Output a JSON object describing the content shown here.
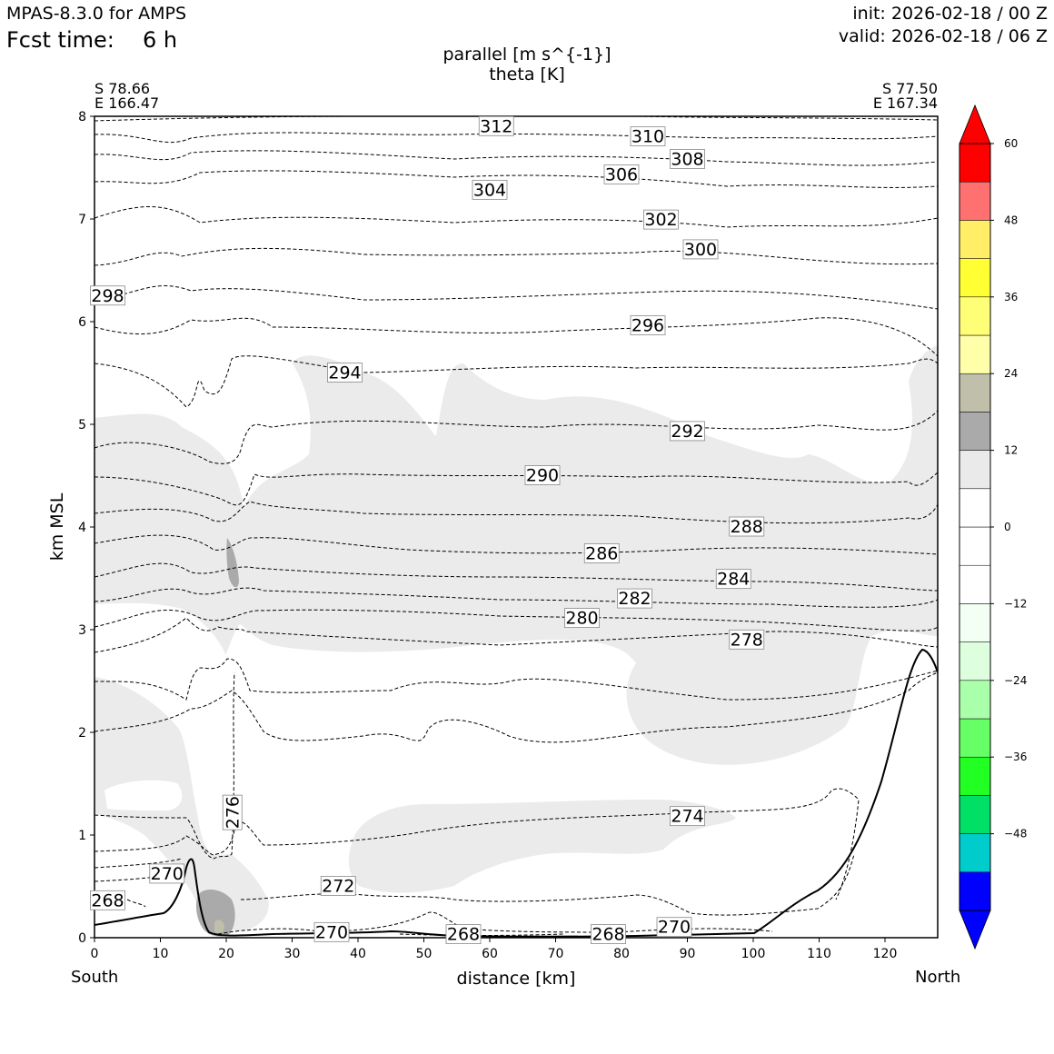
{
  "header": {
    "model": "MPAS-8.3.0 for AMPS",
    "fcst_label": "Fcst time:",
    "fcst_value": "6 h",
    "init": "init: 2026-02-18 / 00 Z",
    "valid": "valid: 2026-02-18 / 06 Z"
  },
  "chart_data": {
    "type": "cross-section",
    "title": "parallel [m s^{-1}]",
    "subtitle": "theta [K]",
    "xlabel": "distance [km]",
    "ylabel": "km MSL",
    "xlim": [
      0,
      128
    ],
    "ylim": [
      0,
      8
    ],
    "x_ticks": [
      "0",
      "10",
      "20",
      "30",
      "40",
      "50",
      "60",
      "70",
      "80",
      "90",
      "100",
      "110",
      "120"
    ],
    "y_ticks": [
      "0",
      "1",
      "2",
      "3",
      "4",
      "5",
      "6",
      "7",
      "8"
    ],
    "left_end": {
      "lat": "S 78.66",
      "lon": "E 166.47",
      "label": "South"
    },
    "right_end": {
      "lat": "S 77.50",
      "lon": "E 167.34",
      "label": "North"
    },
    "colorbar": {
      "levels": [
        -60,
        -54,
        -48,
        -42,
        -36,
        -30,
        -24,
        -18,
        -12,
        -6,
        0,
        6,
        12,
        18,
        24,
        30,
        36,
        42,
        48,
        54,
        60
      ],
      "colors": [
        "#0000ff",
        "#00cccc",
        "#00e066",
        "#22ff22",
        "#66ff66",
        "#aaffaa",
        "#ddffdd",
        "#f3fff3",
        "#ffffff",
        "#ffffff",
        "#ffffff",
        "#eaeaea",
        "#aaaaaa",
        "#bfbfaa",
        "#ffffaa",
        "#ffff77",
        "#ffff33",
        "#ffee66",
        "#ff7070",
        "#ff0000"
      ],
      "tick_labels": [
        "60",
        "48",
        "36",
        "24",
        "12",
        "0",
        "−12",
        "−24",
        "−36",
        "−48"
      ],
      "tick_values": [
        60,
        48,
        36,
        24,
        12,
        0,
        -12,
        -24,
        -36,
        -48
      ]
    },
    "theta_contours": [
      {
        "label": "312",
        "lx": 61,
        "ly": 7.9
      },
      {
        "label": "310",
        "lx": 84,
        "ly": 7.8
      },
      {
        "label": "308",
        "lx": 90,
        "ly": 7.58
      },
      {
        "label": "306",
        "lx": 80,
        "ly": 7.43
      },
      {
        "label": "304",
        "lx": 60,
        "ly": 7.28
      },
      {
        "label": "302",
        "lx": 86,
        "ly": 6.99
      },
      {
        "label": "300",
        "lx": 92,
        "ly": 6.7
      },
      {
        "label": "298",
        "lx": 2,
        "ly": 6.25
      },
      {
        "label": "296",
        "lx": 84,
        "ly": 5.96
      },
      {
        "label": "294",
        "lx": 38,
        "ly": 5.5
      },
      {
        "label": "292",
        "lx": 90,
        "ly": 4.93
      },
      {
        "label": "290",
        "lx": 68,
        "ly": 4.5
      },
      {
        "label": "288",
        "lx": 99,
        "ly": 4.0
      },
      {
        "label": "286",
        "lx": 77,
        "ly": 3.74
      },
      {
        "label": "284",
        "lx": 97,
        "ly": 3.49
      },
      {
        "label": "282",
        "lx": 82,
        "ly": 3.3
      },
      {
        "label": "280",
        "lx": 74,
        "ly": 3.11
      },
      {
        "label": "278",
        "lx": 99,
        "ly": 2.9
      },
      {
        "label": "276",
        "lx": 21,
        "ly": 1.22
      },
      {
        "label": "274",
        "lx": 90,
        "ly": 1.18
      },
      {
        "label": "272",
        "lx": 37,
        "ly": 0.5
      },
      {
        "label": "270",
        "lx": 11,
        "ly": 0.62
      },
      {
        "label": "270",
        "lx": 36,
        "ly": 0.05
      },
      {
        "label": "270",
        "lx": 88,
        "ly": 0.1
      },
      {
        "label": "268",
        "lx": 2,
        "ly": 0.36
      },
      {
        "label": "268",
        "lx": 56,
        "ly": 0.03
      },
      {
        "label": "268",
        "lx": 78,
        "ly": 0.03
      }
    ]
  }
}
